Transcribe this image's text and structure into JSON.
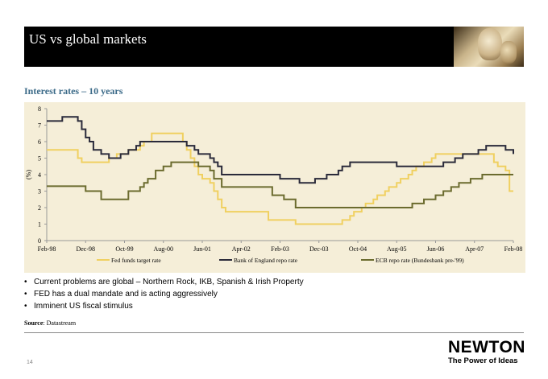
{
  "header": {
    "title": "US vs global markets"
  },
  "subtitle": "Interest rates – 10 years",
  "chart_data": {
    "type": "line",
    "title": "",
    "xlabel": "",
    "ylabel": "(%)",
    "ylim": [
      0,
      8
    ],
    "yticks": [
      "0",
      "1",
      "2",
      "3",
      "4",
      "5",
      "6",
      "7",
      "8"
    ],
    "xticks": [
      "Feb-98",
      "Dec-98",
      "Oct-99",
      "Aug-00",
      "Jun-01",
      "Apr-02",
      "Feb-03",
      "Dec-03",
      "Oct-04",
      "Aug-05",
      "Jun-06",
      "Apr-07",
      "Feb-08"
    ],
    "grid": false,
    "legend_position": "bottom",
    "series": [
      {
        "name": "Fed funds target rate",
        "color": "#f0d060",
        "points": [
          [
            "1998-02",
            5.5
          ],
          [
            "1998-09",
            5.5
          ],
          [
            "1998-10",
            5.0
          ],
          [
            "1998-11",
            4.75
          ],
          [
            "1999-06",
            5.0
          ],
          [
            "1999-08",
            5.25
          ],
          [
            "1999-11",
            5.5
          ],
          [
            "2000-02",
            5.75
          ],
          [
            "2000-03",
            6.0
          ],
          [
            "2000-05",
            6.5
          ],
          [
            "2001-01",
            6.0
          ],
          [
            "2001-02",
            5.5
          ],
          [
            "2001-03",
            5.0
          ],
          [
            "2001-04",
            4.5
          ],
          [
            "2001-05",
            4.0
          ],
          [
            "2001-06",
            3.75
          ],
          [
            "2001-08",
            3.5
          ],
          [
            "2001-09",
            3.0
          ],
          [
            "2001-10",
            2.5
          ],
          [
            "2001-11",
            2.0
          ],
          [
            "2001-12",
            1.75
          ],
          [
            "2002-11",
            1.25
          ],
          [
            "2003-06",
            1.0
          ],
          [
            "2004-06",
            1.25
          ],
          [
            "2004-08",
            1.5
          ],
          [
            "2004-09",
            1.75
          ],
          [
            "2004-11",
            2.0
          ],
          [
            "2004-12",
            2.25
          ],
          [
            "2005-02",
            2.5
          ],
          [
            "2005-03",
            2.75
          ],
          [
            "2005-05",
            3.0
          ],
          [
            "2005-06",
            3.25
          ],
          [
            "2005-08",
            3.5
          ],
          [
            "2005-09",
            3.75
          ],
          [
            "2005-11",
            4.0
          ],
          [
            "2005-12",
            4.25
          ],
          [
            "2006-01",
            4.5
          ],
          [
            "2006-03",
            4.75
          ],
          [
            "2006-05",
            5.0
          ],
          [
            "2006-06",
            5.25
          ],
          [
            "2007-09",
            4.75
          ],
          [
            "2007-10",
            4.5
          ],
          [
            "2007-12",
            4.25
          ],
          [
            "2008-01",
            3.0
          ],
          [
            "2008-02",
            3.0
          ]
        ]
      },
      {
        "name": "Bank of England repo rate",
        "color": "#2a2a3a",
        "points": [
          [
            "1998-02",
            7.25
          ],
          [
            "1998-06",
            7.5
          ],
          [
            "1998-10",
            7.25
          ],
          [
            "1998-11",
            6.75
          ],
          [
            "1998-12",
            6.25
          ],
          [
            "1999-01",
            6.0
          ],
          [
            "1999-02",
            5.5
          ],
          [
            "1999-04",
            5.25
          ],
          [
            "1999-06",
            5.0
          ],
          [
            "1999-09",
            5.25
          ],
          [
            "1999-11",
            5.5
          ],
          [
            "2000-01",
            5.75
          ],
          [
            "2000-02",
            6.0
          ],
          [
            "2001-02",
            5.75
          ],
          [
            "2001-04",
            5.5
          ],
          [
            "2001-05",
            5.25
          ],
          [
            "2001-08",
            5.0
          ],
          [
            "2001-09",
            4.75
          ],
          [
            "2001-10",
            4.5
          ],
          [
            "2001-11",
            4.0
          ],
          [
            "2003-02",
            3.75
          ],
          [
            "2003-07",
            3.5
          ],
          [
            "2003-11",
            3.75
          ],
          [
            "2004-02",
            4.0
          ],
          [
            "2004-05",
            4.25
          ],
          [
            "2004-06",
            4.5
          ],
          [
            "2004-08",
            4.75
          ],
          [
            "2005-08",
            4.5
          ],
          [
            "2006-08",
            4.75
          ],
          [
            "2006-11",
            5.0
          ],
          [
            "2007-01",
            5.25
          ],
          [
            "2007-05",
            5.5
          ],
          [
            "2007-07",
            5.75
          ],
          [
            "2007-12",
            5.5
          ],
          [
            "2008-02",
            5.25
          ]
        ]
      },
      {
        "name": "ECB repo rate (Bundesbank pre-'99)",
        "color": "#6b6b2e",
        "points": [
          [
            "1998-02",
            3.3
          ],
          [
            "1998-12",
            3.0
          ],
          [
            "1999-04",
            2.5
          ],
          [
            "1999-11",
            3.0
          ],
          [
            "2000-02",
            3.25
          ],
          [
            "2000-03",
            3.5
          ],
          [
            "2000-04",
            3.75
          ],
          [
            "2000-06",
            4.25
          ],
          [
            "2000-08",
            4.5
          ],
          [
            "2000-10",
            4.75
          ],
          [
            "2001-05",
            4.5
          ],
          [
            "2001-08",
            4.25
          ],
          [
            "2001-09",
            3.75
          ],
          [
            "2001-11",
            3.25
          ],
          [
            "2002-12",
            2.75
          ],
          [
            "2003-03",
            2.5
          ],
          [
            "2003-06",
            2.0
          ],
          [
            "2005-12",
            2.25
          ],
          [
            "2006-03",
            2.5
          ],
          [
            "2006-06",
            2.75
          ],
          [
            "2006-08",
            3.0
          ],
          [
            "2006-10",
            3.25
          ],
          [
            "2006-12",
            3.5
          ],
          [
            "2007-03",
            3.75
          ],
          [
            "2007-06",
            4.0
          ],
          [
            "2008-02",
            4.0
          ]
        ]
      }
    ]
  },
  "bullets": [
    "Current problems are global – Northern Rock, IKB, Spanish & Irish Property",
    "FED has a dual mandate and is acting aggressively",
    "Imminent US fiscal stimulus"
  ],
  "source": {
    "label": "Source",
    "text": ": Datastream"
  },
  "footer": {
    "page_number": "14",
    "logo": "NEWTON",
    "tagline": "The Power of Ideas"
  }
}
